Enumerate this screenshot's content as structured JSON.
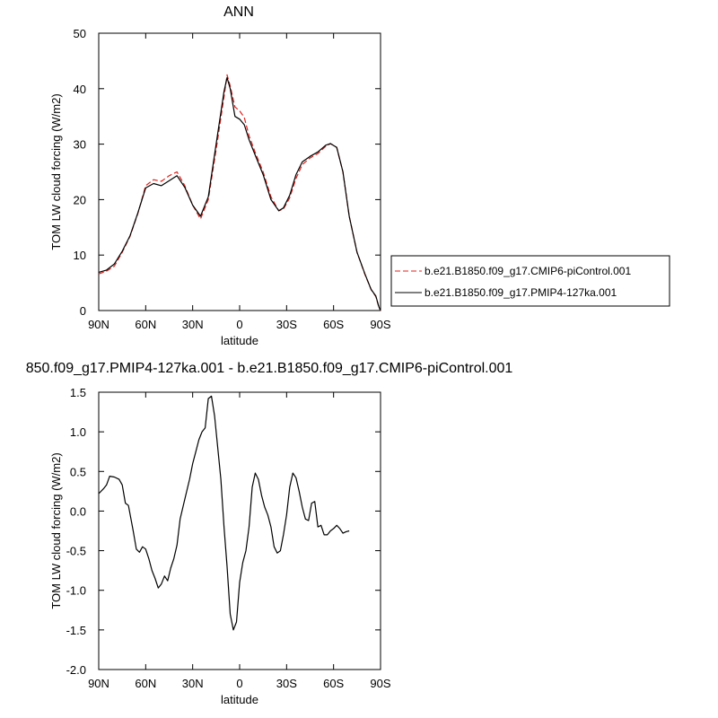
{
  "figure": {
    "top_title": "ANN",
    "bottom_title": "850.f09_g17.PMIP4-127ka.001 - b.e21.B1850.f09_g17.CMIP6-piControl.001"
  },
  "legend": {
    "entries": [
      {
        "label": "b.e21.B1850.f09_g17.CMIP6-piControl.001",
        "color": "#e0201b",
        "dash": true
      },
      {
        "label": "b.e21.B1850.f09_g17.PMIP4-127ka.001",
        "color": "#000000",
        "dash": false
      }
    ]
  },
  "chart_data": [
    {
      "type": "line",
      "title": "ANN",
      "xlabel": "latitude",
      "ylabel": "TOM LW cloud forcing (W/m2)",
      "xlim": [
        90,
        -90
      ],
      "ylim": [
        0,
        50
      ],
      "x_ticks": [
        90,
        60,
        30,
        0,
        -30,
        -60,
        -90
      ],
      "x_tick_labels": [
        "90N",
        "60N",
        "30N",
        "0",
        "30S",
        "60S",
        "90S"
      ],
      "y_ticks": [
        0,
        10,
        20,
        30,
        40,
        50
      ],
      "y_tick_labels": [
        "0",
        "10",
        "20",
        "30",
        "40",
        "50"
      ],
      "legend": "right",
      "grid": false,
      "series": [
        {
          "name": "b.e21.B1850.f09_g17.CMIP6-piControl.001",
          "color": "#e0201b",
          "style": "dashed",
          "points": [
            [
              90,
              6.6
            ],
            [
              85,
              7.1
            ],
            [
              80,
              8.0
            ],
            [
              75,
              10.5
            ],
            [
              70,
              13.4
            ],
            [
              65,
              17.5
            ],
            [
              60,
              22.5
            ],
            [
              55,
              23.6
            ],
            [
              50,
              23.3
            ],
            [
              45,
              24.3
            ],
            [
              40,
              25.0
            ],
            [
              35,
              22.5
            ],
            [
              30,
              19.0
            ],
            [
              25,
              16.5
            ],
            [
              20,
              20.0
            ],
            [
              15,
              29.0
            ],
            [
              10,
              38.5
            ],
            [
              8,
              42.5
            ],
            [
              6,
              40.5
            ],
            [
              3,
              36.7
            ],
            [
              0,
              36.0
            ],
            [
              -3,
              34.8
            ],
            [
              -6,
              31.5
            ],
            [
              -10,
              28.5
            ],
            [
              -15,
              25.0
            ],
            [
              -20,
              20.5
            ],
            [
              -25,
              18.0
            ],
            [
              -28,
              18.3
            ],
            [
              -32,
              20.3
            ],
            [
              -36,
              23.8
            ],
            [
              -40,
              26.3
            ],
            [
              -45,
              27.5
            ],
            [
              -50,
              28.3
            ],
            [
              -55,
              29.6
            ],
            [
              -58,
              30.1
            ],
            [
              -62,
              29.4
            ],
            [
              -66,
              25.0
            ],
            [
              -70,
              17.0
            ],
            [
              -75,
              10.5
            ],
            [
              -80,
              6.5
            ],
            [
              -84,
              3.8
            ],
            [
              -87,
              2.5
            ],
            [
              -89,
              0.5
            ],
            [
              -90,
              0.0
            ]
          ]
        },
        {
          "name": "b.e21.B1850.f09_g17.PMIP4-127ka.001",
          "color": "#000000",
          "style": "solid",
          "points": [
            [
              90,
              6.9
            ],
            [
              85,
              7.3
            ],
            [
              80,
              8.4
            ],
            [
              75,
              10.7
            ],
            [
              70,
              13.5
            ],
            [
              65,
              17.6
            ],
            [
              60,
              22.1
            ],
            [
              55,
              22.9
            ],
            [
              50,
              22.5
            ],
            [
              45,
              23.4
            ],
            [
              40,
              24.3
            ],
            [
              35,
              22.2
            ],
            [
              30,
              19.0
            ],
            [
              25,
              17.0
            ],
            [
              20,
              20.5
            ],
            [
              15,
              30.0
            ],
            [
              10,
              39.5
            ],
            [
              8,
              42.0
            ],
            [
              6,
              40.0
            ],
            [
              3,
              35.0
            ],
            [
              0,
              34.5
            ],
            [
              -3,
              33.5
            ],
            [
              -6,
              30.8
            ],
            [
              -10,
              28.0
            ],
            [
              -15,
              24.5
            ],
            [
              -20,
              20.0
            ],
            [
              -25,
              18.0
            ],
            [
              -28,
              18.5
            ],
            [
              -32,
              20.8
            ],
            [
              -36,
              24.5
            ],
            [
              -40,
              26.8
            ],
            [
              -45,
              27.8
            ],
            [
              -50,
              28.6
            ],
            [
              -55,
              29.8
            ],
            [
              -58,
              30.1
            ],
            [
              -62,
              29.4
            ],
            [
              -66,
              25.0
            ],
            [
              -70,
              17.0
            ],
            [
              -75,
              10.5
            ],
            [
              -80,
              6.6
            ],
            [
              -84,
              3.8
            ],
            [
              -87,
              2.6
            ],
            [
              -89,
              0.6
            ],
            [
              -90,
              0.0
            ]
          ]
        }
      ]
    },
    {
      "type": "line",
      "title": "850.f09_g17.PMIP4-127ka.001 - b.e21.B1850.f09_g17.CMIP6-piControl.001",
      "xlabel": "latitude",
      "ylabel": "TOM LW cloud forcing (W/m2)",
      "xlim": [
        90,
        -90
      ],
      "ylim": [
        -2.0,
        1.5
      ],
      "x_ticks": [
        90,
        60,
        30,
        0,
        -30,
        -60,
        -90
      ],
      "x_tick_labels": [
        "90N",
        "60N",
        "30N",
        "0",
        "30S",
        "60S",
        "90S"
      ],
      "y_ticks": [
        -2.0,
        -1.5,
        -1.0,
        -0.5,
        0.0,
        0.5,
        1.0,
        1.5
      ],
      "y_tick_labels": [
        "-2.0",
        "-1.5",
        "-1.0",
        "-0.5",
        "0.0",
        "0.5",
        "1.0",
        "1.5"
      ],
      "grid": false,
      "series": [
        {
          "color": "#000000",
          "style": "solid",
          "points": [
            [
              90,
              0.22
            ],
            [
              87,
              0.28
            ],
            [
              85,
              0.33
            ],
            [
              83,
              0.44
            ],
            [
              80,
              0.43
            ],
            [
              77,
              0.4
            ],
            [
              75,
              0.33
            ],
            [
              73,
              0.1
            ],
            [
              71,
              0.07
            ],
            [
              68,
              -0.25
            ],
            [
              66,
              -0.48
            ],
            [
              64,
              -0.52
            ],
            [
              62,
              -0.45
            ],
            [
              60,
              -0.48
            ],
            [
              58,
              -0.6
            ],
            [
              56,
              -0.75
            ],
            [
              54,
              -0.85
            ],
            [
              52,
              -0.97
            ],
            [
              50,
              -0.92
            ],
            [
              48,
              -0.82
            ],
            [
              46,
              -0.88
            ],
            [
              44,
              -0.72
            ],
            [
              42,
              -0.6
            ],
            [
              40,
              -0.43
            ],
            [
              38,
              -0.1
            ],
            [
              35,
              0.15
            ],
            [
              32,
              0.4
            ],
            [
              30,
              0.6
            ],
            [
              28,
              0.75
            ],
            [
              26,
              0.9
            ],
            [
              24,
              1.0
            ],
            [
              22,
              1.05
            ],
            [
              20,
              1.42
            ],
            [
              18,
              1.45
            ],
            [
              16,
              1.2
            ],
            [
              14,
              0.8
            ],
            [
              12,
              0.4
            ],
            [
              10,
              -0.2
            ],
            [
              8,
              -0.7
            ],
            [
              6,
              -1.3
            ],
            [
              4,
              -1.5
            ],
            [
              2,
              -1.4
            ],
            [
              0,
              -0.9
            ],
            [
              -2,
              -0.65
            ],
            [
              -4,
              -0.5
            ],
            [
              -6,
              -0.2
            ],
            [
              -8,
              0.3
            ],
            [
              -10,
              0.48
            ],
            [
              -12,
              0.4
            ],
            [
              -14,
              0.2
            ],
            [
              -16,
              0.05
            ],
            [
              -18,
              -0.05
            ],
            [
              -20,
              -0.2
            ],
            [
              -22,
              -0.45
            ],
            [
              -24,
              -0.53
            ],
            [
              -26,
              -0.5
            ],
            [
              -28,
              -0.3
            ],
            [
              -30,
              -0.05
            ],
            [
              -32,
              0.3
            ],
            [
              -34,
              0.48
            ],
            [
              -36,
              0.42
            ],
            [
              -38,
              0.25
            ],
            [
              -40,
              0.05
            ],
            [
              -42,
              -0.1
            ],
            [
              -44,
              -0.12
            ],
            [
              -46,
              0.1
            ],
            [
              -48,
              0.12
            ],
            [
              -50,
              -0.2
            ],
            [
              -52,
              -0.18
            ],
            [
              -54,
              -0.3
            ],
            [
              -56,
              -0.3
            ],
            [
              -58,
              -0.25
            ],
            [
              -60,
              -0.22
            ],
            [
              -62,
              -0.18
            ],
            [
              -64,
              -0.22
            ],
            [
              -66,
              -0.28
            ],
            [
              -68,
              -0.26
            ],
            [
              -70,
              -0.25
            ]
          ]
        }
      ]
    }
  ]
}
